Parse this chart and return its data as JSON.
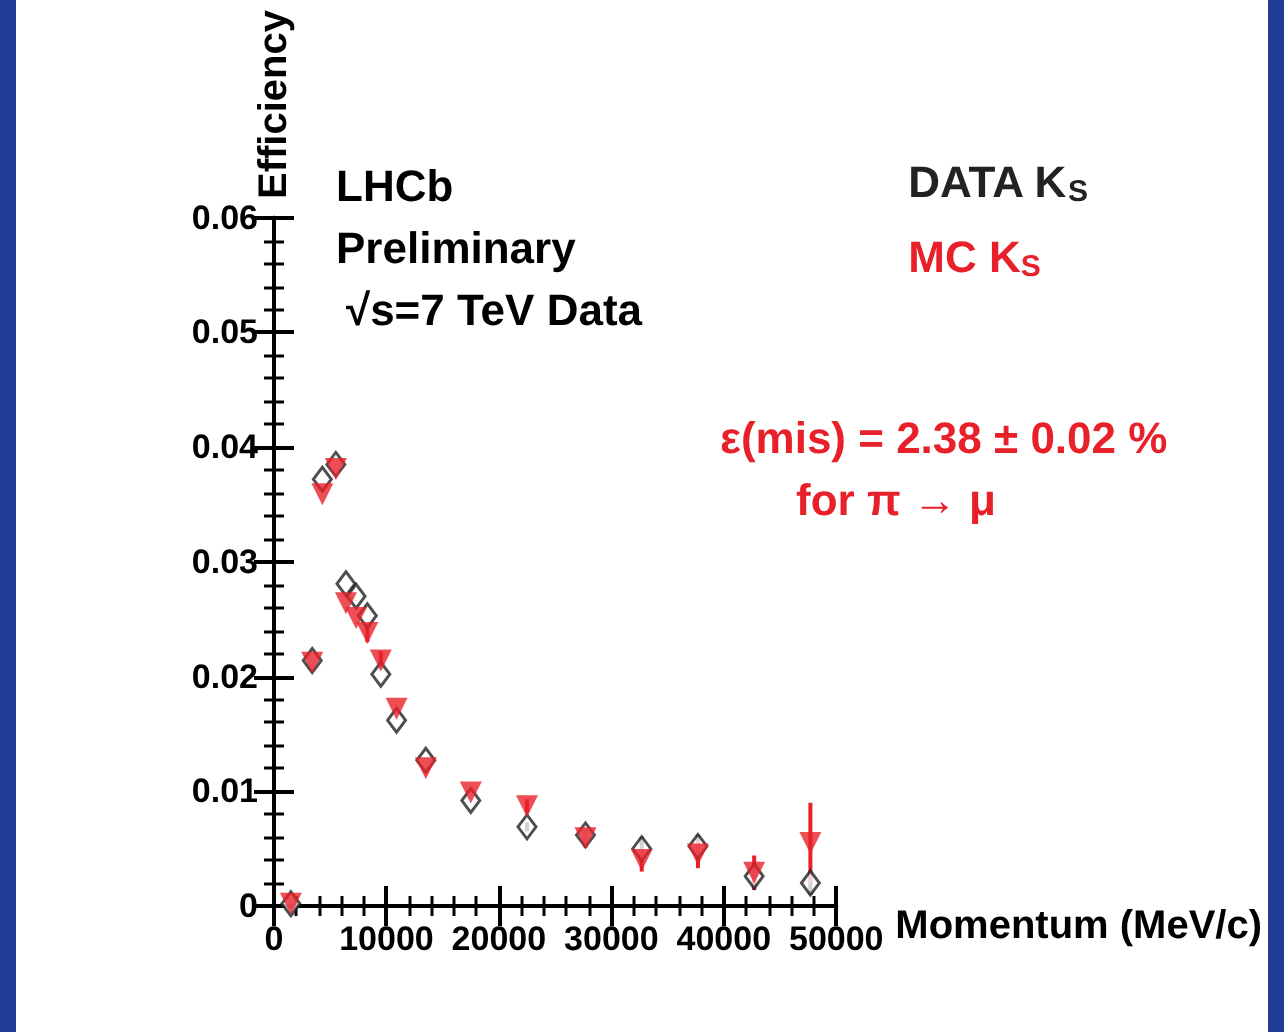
{
  "chart_data": {
    "type": "scatter",
    "xlabel": "Momentum (MeV/c)",
    "ylabel": "Efficiency",
    "annotations": [
      "LHCb",
      "Preliminary",
      "√s=7 TeV Data",
      "ε(mis) = 2.38 ± 0.02 %",
      "for π → μ"
    ],
    "x": [
      1500,
      3400,
      4300,
      5500,
      6400,
      7300,
      8300,
      9500,
      10900,
      13500,
      17500,
      22500,
      27700,
      32700,
      37700,
      42700,
      47700
    ],
    "series": [
      {
        "name": "DATA K$_{S}$",
        "color": "#222222",
        "marker": "diamond",
        "values": [
          0.0002,
          0.0214,
          0.0372,
          0.0385,
          0.0281,
          0.027,
          0.0253,
          0.0202,
          0.0162,
          0.0127,
          0.0092,
          0.0069,
          0.0062,
          0.005,
          0.0052,
          0.0026,
          0.002
        ],
        "errors": [
          null,
          null,
          null,
          null,
          null,
          null,
          null,
          null,
          null,
          null,
          null,
          0.0004,
          0.0005,
          0.001,
          0.001,
          0.0012,
          0.001
        ]
      },
      {
        "name": "MC K$_{S}$",
        "color": "#e8202a",
        "marker": "triangle",
        "values": [
          0.0002,
          0.0212,
          0.0359,
          0.0381,
          0.0264,
          0.0251,
          0.0238,
          0.0214,
          0.0172,
          0.012,
          0.0099,
          0.0087,
          0.0059,
          0.004,
          0.0045,
          0.0029,
          0.0055
        ],
        "errors": [
          null,
          null,
          null,
          null,
          null,
          null,
          0.0008,
          0.0008,
          null,
          null,
          null,
          0.0006,
          0.0008,
          0.001,
          0.0012,
          0.0015,
          0.0035
        ]
      }
    ],
    "xlim": [
      0,
      50000
    ],
    "xticks": [
      0,
      10000,
      20000,
      30000,
      40000,
      50000
    ],
    "ylim": [
      0,
      0.06
    ],
    "yticks": [
      0,
      0.01,
      0.02,
      0.03,
      0.04,
      0.05,
      0.06
    ],
    "grid": false,
    "legend": "top right"
  }
}
